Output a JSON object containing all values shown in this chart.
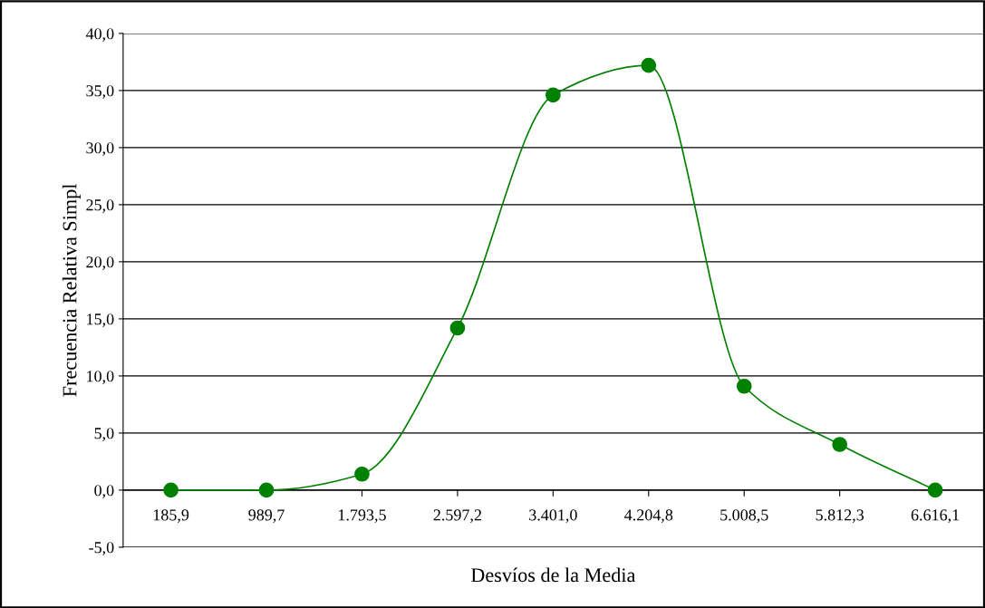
{
  "chart_data": {
    "type": "line",
    "xlabel": "Desvíos de la Media",
    "ylabel": "Frecuencia Relativa Simpl",
    "categories": [
      "185,9",
      "989,7",
      "1.793,5",
      "2.597,2",
      "3.401,0",
      "4.204,8",
      "5.008,5",
      "5.812,3",
      "6.616,1"
    ],
    "series": [
      {
        "color": "#008000",
        "values": [
          0.0,
          0.0,
          1.4,
          14.2,
          34.6,
          37.2,
          9.1,
          4.0,
          0.0
        ]
      }
    ],
    "ylim": [
      -5,
      40
    ],
    "yticks": [
      {
        "value": -5,
        "label": "-5,0"
      },
      {
        "value": 0,
        "label": "0,0"
      },
      {
        "value": 5,
        "label": "5,0"
      },
      {
        "value": 10,
        "label": "10,0"
      },
      {
        "value": 15,
        "label": "15,0"
      },
      {
        "value": 20,
        "label": "20,0"
      },
      {
        "value": 25,
        "label": "25,0"
      },
      {
        "value": 30,
        "label": "30,0"
      },
      {
        "value": 35,
        "label": "35,0"
      },
      {
        "value": 40,
        "label": "40,0"
      }
    ],
    "grid": "y",
    "marker": "circle",
    "line_style": "solid",
    "legend": false
  }
}
